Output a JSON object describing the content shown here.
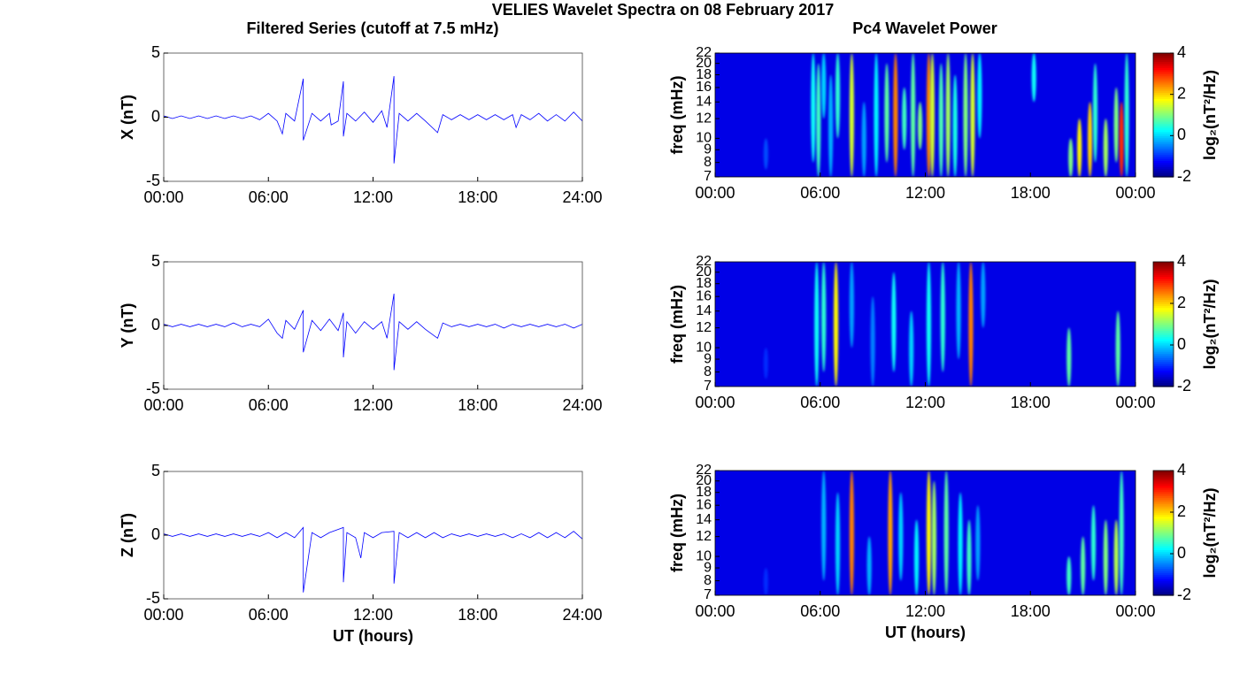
{
  "figure_title": "VELIES Wavelet Spectra on 08 February 2017",
  "column_titles": [
    "Filtered Series (cutoff at 7.5 mHz)",
    "Pc4 Wavelet Power"
  ],
  "chart_data": [
    {
      "type": "line",
      "ylabel": "X (nT)",
      "color": "#0000ff",
      "xlim": [
        0,
        24
      ],
      "xticks": [
        {
          "value": 0,
          "label": "00:00"
        },
        {
          "value": 6,
          "label": "06:00"
        },
        {
          "value": 12,
          "label": "12:00"
        },
        {
          "value": 18,
          "label": "18:00"
        },
        {
          "value": 24,
          "label": "24:00"
        }
      ],
      "ylim": [
        -5,
        5
      ],
      "yticks": [
        -5,
        0,
        5
      ],
      "x": [
        0,
        0.5,
        1,
        1.5,
        2,
        2.5,
        3,
        3.5,
        4,
        4.5,
        5,
        5.5,
        6,
        6.5,
        6.8,
        7,
        7.5,
        8,
        8,
        8.5,
        9,
        9.5,
        9.6,
        10,
        10.3,
        10.3,
        10.5,
        11,
        11.5,
        12,
        12.5,
        12.8,
        13.2,
        13.2,
        13.5,
        14,
        14.5,
        15,
        15.7,
        16,
        16.5,
        17,
        17.5,
        18,
        18.5,
        19,
        19.5,
        20,
        20.2,
        20.5,
        21,
        21.5,
        22,
        22.5,
        23,
        23.5,
        24
      ],
      "values": [
        0.1,
        -0.1,
        0.1,
        -0.1,
        0.1,
        -0.1,
        0.1,
        -0.1,
        0.1,
        -0.1,
        0.1,
        -0.2,
        0.3,
        -0.3,
        -1.3,
        0.3,
        -0.3,
        3.0,
        -1.8,
        0.3,
        -0.3,
        0.3,
        -0.6,
        -0.3,
        2.8,
        -1.5,
        0.3,
        -0.3,
        0.4,
        -0.4,
        0.5,
        -0.8,
        3.2,
        -3.6,
        0.3,
        -0.3,
        0.3,
        -0.3,
        -1.2,
        0.2,
        -0.2,
        0.2,
        -0.2,
        0.2,
        -0.2,
        0.2,
        -0.2,
        0.2,
        -0.8,
        0.2,
        -0.2,
        0.3,
        -0.3,
        0.2,
        -0.3,
        0.4,
        -0.3
      ]
    },
    {
      "type": "line",
      "ylabel": "Y (nT)",
      "color": "#0000ff",
      "xlim": [
        0,
        24
      ],
      "xticks": [
        {
          "value": 0,
          "label": "00:00"
        },
        {
          "value": 6,
          "label": "06:00"
        },
        {
          "value": 12,
          "label": "12:00"
        },
        {
          "value": 18,
          "label": "18:00"
        },
        {
          "value": 24,
          "label": "24:00"
        }
      ],
      "ylim": [
        -5,
        5
      ],
      "yticks": [
        -5,
        0,
        5
      ],
      "x": [
        0,
        0.5,
        1,
        1.5,
        2,
        2.5,
        3,
        3.5,
        4,
        4.5,
        5,
        5.5,
        6,
        6.5,
        6.8,
        7,
        7.5,
        8,
        8,
        8.5,
        9,
        9.5,
        10,
        10.3,
        10.3,
        10.5,
        11,
        11.5,
        12,
        12.5,
        12.8,
        13.2,
        13.2,
        13.5,
        14,
        14.5,
        15,
        15.7,
        16,
        16.5,
        17,
        17.5,
        18,
        18.5,
        19,
        19.5,
        20,
        20.5,
        21,
        21.5,
        22,
        22.5,
        23,
        23.5,
        24
      ],
      "values": [
        0.1,
        -0.1,
        0.1,
        -0.1,
        0.1,
        -0.1,
        0.1,
        -0.1,
        0.2,
        -0.1,
        0.1,
        -0.1,
        0.5,
        -0.6,
        -1.0,
        0.4,
        -0.3,
        1.2,
        -2.1,
        0.4,
        -0.4,
        0.5,
        -0.4,
        1.0,
        -2.5,
        0.3,
        -0.6,
        0.3,
        -0.3,
        0.3,
        -1.0,
        2.5,
        -3.5,
        0.3,
        -0.3,
        0.3,
        -0.3,
        -1.0,
        0.2,
        -0.1,
        0.1,
        -0.1,
        0.1,
        -0.1,
        0.1,
        -0.2,
        0.1,
        -0.1,
        0.1,
        -0.1,
        0.1,
        -0.1,
        0.1,
        -0.2,
        0.1
      ]
    },
    {
      "type": "line",
      "ylabel": "Z (nT)",
      "xlabel": "UT (hours)",
      "color": "#0000ff",
      "xlim": [
        0,
        24
      ],
      "xticks": [
        {
          "value": 0,
          "label": "00:00"
        },
        {
          "value": 6,
          "label": "06:00"
        },
        {
          "value": 12,
          "label": "12:00"
        },
        {
          "value": 18,
          "label": "18:00"
        },
        {
          "value": 24,
          "label": "24:00"
        }
      ],
      "ylim": [
        -5,
        5
      ],
      "yticks": [
        -5,
        0,
        5
      ],
      "x": [
        0,
        0.5,
        1,
        1.5,
        2,
        2.5,
        3,
        3.5,
        4,
        4.5,
        5,
        5.5,
        6,
        6.5,
        7,
        7.5,
        8,
        8,
        8.5,
        9,
        9.5,
        10.3,
        10.3,
        10.5,
        11,
        11.3,
        11.5,
        12,
        12.5,
        13.2,
        13.2,
        13.5,
        14,
        14.5,
        15,
        15.5,
        16,
        16.5,
        17,
        17.5,
        18,
        18.5,
        19,
        19.5,
        20,
        20.5,
        21,
        21.5,
        22,
        22.5,
        23,
        23.5,
        24
      ],
      "values": [
        0.1,
        -0.1,
        0.1,
        -0.1,
        0.1,
        -0.1,
        0.1,
        -0.1,
        0.1,
        -0.1,
        0.1,
        -0.1,
        0.2,
        -0.2,
        0.2,
        -0.2,
        0.6,
        -4.5,
        0.2,
        -0.2,
        0.2,
        0.6,
        -3.7,
        0.2,
        -0.2,
        -1.8,
        0.2,
        -0.2,
        0.2,
        0.3,
        -3.8,
        0.2,
        -0.2,
        0.2,
        -0.2,
        0.2,
        -0.2,
        0.1,
        -0.1,
        0.1,
        -0.1,
        0.1,
        -0.1,
        0.1,
        -0.2,
        0.1,
        -0.2,
        0.2,
        -0.2,
        0.2,
        -0.2,
        0.3,
        -0.3
      ]
    },
    {
      "type": "heatmap",
      "ylabel": "freq (mHz)",
      "zlabel": "log₂(nT²/Hz)",
      "xlim": [
        0,
        24
      ],
      "xticks": [
        {
          "value": 0,
          "label": "00:00"
        },
        {
          "value": 6,
          "label": "06:00"
        },
        {
          "value": 12,
          "label": "12:00"
        },
        {
          "value": 18,
          "label": "18:00"
        },
        {
          "value": 24,
          "label": "00:00"
        }
      ],
      "ylim": [
        7,
        22
      ],
      "yticks": [
        7,
        8,
        9,
        10,
        12,
        14,
        16,
        18,
        20,
        22
      ],
      "ylog": true,
      "zlim": [
        -2,
        4
      ],
      "zticks": [
        -2,
        0,
        2,
        4
      ],
      "base_value": -1.4,
      "x": [
        2.9,
        5.6,
        5.9,
        6.2,
        6.6,
        7.0,
        7.8,
        8.5,
        9.2,
        9.8,
        10.3,
        10.8,
        11.3,
        11.7,
        12.2,
        12.4,
        12.9,
        13.3,
        13.7,
        14.3,
        14.7,
        15.1,
        18.2,
        20.3,
        20.8,
        21.4,
        21.7,
        22.3,
        22.9,
        23.2,
        23.5
      ],
      "ylow": [
        7.5,
        8,
        7,
        12,
        7,
        10,
        7,
        7,
        7,
        8,
        7,
        9,
        7,
        9,
        7,
        7,
        7,
        7,
        7,
        7,
        7,
        10,
        14,
        7,
        7,
        7,
        8,
        7,
        8,
        7,
        7
      ],
      "yhigh": [
        10,
        22,
        20,
        22,
        18,
        22,
        22,
        14,
        22,
        20,
        22,
        16,
        22,
        14,
        22,
        22,
        20,
        22,
        18,
        22,
        22,
        22,
        22,
        10,
        12,
        14,
        20,
        12,
        16,
        14,
        22
      ],
      "values": [
        -0.8,
        0.3,
        0.6,
        0.0,
        -0.2,
        0.5,
        1.5,
        -0.3,
        0.2,
        0.8,
        2.5,
        0.6,
        0.8,
        1.0,
        2.5,
        1.5,
        0.7,
        1.2,
        0.4,
        1.0,
        1.5,
        0.2,
        0.3,
        1.0,
        1.8,
        2.0,
        0.5,
        1.2,
        1.0,
        3.0,
        0.5
      ]
    },
    {
      "type": "heatmap",
      "ylabel": "freq (mHz)",
      "zlabel": "log₂(nT²/Hz)",
      "xlim": [
        0,
        24
      ],
      "xticks": [
        {
          "value": 0,
          "label": "00:00"
        },
        {
          "value": 6,
          "label": "06:00"
        },
        {
          "value": 12,
          "label": "12:00"
        },
        {
          "value": 18,
          "label": "18:00"
        },
        {
          "value": 24,
          "label": "00:00"
        }
      ],
      "ylim": [
        7,
        22
      ],
      "yticks": [
        7,
        8,
        9,
        10,
        12,
        14,
        16,
        18,
        20,
        22
      ],
      "ylog": true,
      "zlim": [
        -2,
        4
      ],
      "zticks": [
        -2,
        0,
        2,
        4
      ],
      "base_value": -1.4,
      "x": [
        2.9,
        5.8,
        6.2,
        6.9,
        7.8,
        9.0,
        10.2,
        11.2,
        12.2,
        13.0,
        13.9,
        14.6,
        15.3,
        20.2,
        23.0
      ],
      "ylow": [
        7.5,
        7,
        8,
        7,
        10,
        7,
        8,
        7,
        7,
        8,
        9,
        7,
        12,
        7,
        7
      ],
      "yhigh": [
        10,
        22,
        22,
        22,
        22,
        16,
        20,
        14,
        22,
        22,
        22,
        22,
        22,
        12,
        14
      ],
      "values": [
        -1.0,
        0.3,
        0.5,
        1.8,
        -0.3,
        -0.5,
        0.3,
        0.0,
        0.3,
        0.5,
        -0.2,
        2.5,
        -0.3,
        0.8,
        0.8
      ]
    },
    {
      "type": "heatmap",
      "ylabel": "freq (mHz)",
      "zlabel": "log₂(nT²/Hz)",
      "xlabel": "UT (hours)",
      "xlim": [
        0,
        24
      ],
      "xticks": [
        {
          "value": 0,
          "label": "00:00"
        },
        {
          "value": 6,
          "label": "06:00"
        },
        {
          "value": 12,
          "label": "12:00"
        },
        {
          "value": 18,
          "label": "18:00"
        },
        {
          "value": 24,
          "label": "00:00"
        }
      ],
      "ylim": [
        7,
        22
      ],
      "yticks": [
        7,
        8,
        9,
        10,
        12,
        14,
        16,
        18,
        20,
        22
      ],
      "ylog": true,
      "zlim": [
        -2,
        4
      ],
      "zticks": [
        -2,
        0,
        2,
        4
      ],
      "base_value": -1.4,
      "x": [
        2.9,
        6.2,
        7.0,
        7.8,
        8.8,
        10.0,
        10.6,
        11.5,
        12.2,
        12.5,
        13.2,
        14.0,
        14.5,
        15.0,
        20.2,
        21.0,
        21.6,
        22.3,
        22.9,
        23.2
      ],
      "ylow": [
        7,
        8,
        7,
        7,
        7,
        7,
        8,
        7,
        7,
        7,
        7,
        7,
        7,
        8,
        7,
        7,
        8,
        7,
        7,
        7
      ],
      "yhigh": [
        9,
        22,
        18,
        22,
        12,
        22,
        18,
        14,
        22,
        20,
        22,
        18,
        14,
        16,
        10,
        12,
        16,
        14,
        14,
        22
      ],
      "values": [
        -1.0,
        -0.2,
        0.0,
        2.5,
        -0.2,
        2.3,
        0.0,
        0.2,
        1.8,
        1.2,
        0.8,
        0.2,
        0.6,
        -0.3,
        0.6,
        0.8,
        0.5,
        1.0,
        1.3,
        0.6
      ]
    }
  ]
}
